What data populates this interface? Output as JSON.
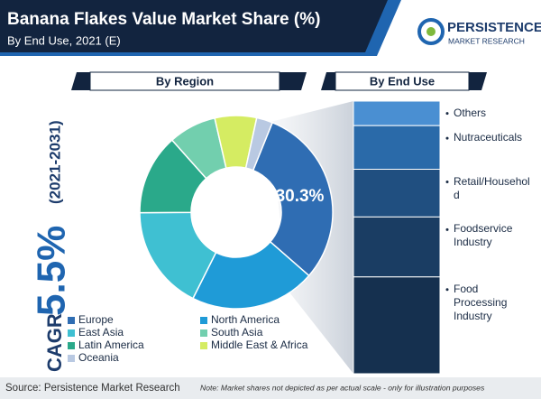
{
  "header": {
    "title": "Banana Flakes Value Market Share (%)",
    "subtitle": "By End Use, 2021 (E)",
    "logo_name": "PERSISTENCE",
    "logo_sub": "MARKET RESEARCH"
  },
  "cagr": {
    "label": "CAGR",
    "value": "5.5%",
    "period": "(2021-2031)"
  },
  "chart_data": [
    {
      "type": "pie",
      "title": "By Region",
      "categories": [
        "Europe",
        "North America",
        "East Asia",
        "Latin America",
        "South Asia",
        "Middle East & Africa",
        "Oceania"
      ],
      "values": [
        30.3,
        21,
        17.5,
        13.5,
        8,
        7,
        2.7
      ],
      "value_labels": [
        "30.3%",
        null,
        null,
        null,
        null,
        null,
        null
      ],
      "colors": [
        "#2f6db3",
        "#1f9bd7",
        "#3fc0d2",
        "#2aa98a",
        "#72cfae",
        "#d5ec62",
        "#b9c9e2"
      ]
    },
    {
      "type": "stacked_bar",
      "title": "By End Use",
      "categories": [
        "Others",
        "Nutraceuticals",
        "Retail/Household",
        "Foodservice Industry",
        "Food Processing Industry"
      ],
      "values": [
        9,
        16,
        17.5,
        22,
        35.5
      ],
      "colors": [
        "#4a8fd2",
        "#2a6aa9",
        "#204f80",
        "#1a3d63",
        "#15304f"
      ]
    }
  ],
  "footer": {
    "source": "Source: Persistence Market Research",
    "note": "Note: Market shares not depicted as per actual scale - only for illustration purposes"
  }
}
